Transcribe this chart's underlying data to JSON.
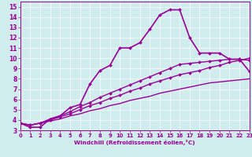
{
  "xlabel": "Windchill (Refroidissement éolien,°C)",
  "background_color": "#d0ecec",
  "line_color": "#990099",
  "xlim": [
    0,
    23
  ],
  "ylim": [
    3,
    15.5
  ],
  "xticks": [
    0,
    1,
    2,
    3,
    4,
    5,
    6,
    7,
    8,
    9,
    10,
    11,
    12,
    13,
    14,
    15,
    16,
    17,
    18,
    19,
    20,
    21,
    22,
    23
  ],
  "yticks": [
    3,
    4,
    5,
    6,
    7,
    8,
    9,
    10,
    11,
    12,
    13,
    14,
    15
  ],
  "series": [
    {
      "x": [
        0,
        1,
        2,
        3,
        4,
        5,
        6,
        7,
        8,
        9,
        10,
        11,
        12,
        13,
        14,
        15,
        16,
        17,
        18,
        19,
        20,
        21,
        22,
        23
      ],
      "y": [
        3.7,
        3.3,
        3.3,
        4.1,
        4.4,
        5.2,
        5.5,
        7.5,
        8.8,
        9.3,
        11.0,
        11.0,
        11.5,
        12.8,
        14.2,
        14.7,
        14.7,
        12.0,
        10.5,
        10.5,
        10.5,
        9.9,
        9.9,
        8.7
      ],
      "marker": true,
      "linewidth": 1.2,
      "dashed": false
    },
    {
      "x": [
        0,
        1,
        2,
        3,
        4,
        5,
        6,
        7,
        8,
        9,
        10,
        11,
        12,
        13,
        14,
        15,
        16,
        17,
        18,
        19,
        20,
        21,
        22,
        23
      ],
      "y": [
        3.7,
        3.5,
        3.7,
        4.0,
        4.3,
        4.6,
        5.0,
        5.4,
        5.7,
        6.1,
        6.4,
        6.8,
        7.1,
        7.5,
        7.8,
        8.1,
        8.4,
        8.6,
        8.8,
        9.1,
        9.3,
        9.6,
        9.8,
        10.0
      ],
      "marker": true,
      "linewidth": 1.0,
      "dashed": false
    },
    {
      "x": [
        0,
        1,
        2,
        3,
        4,
        5,
        6,
        7,
        8,
        9,
        10,
        11,
        12,
        13,
        14,
        15,
        16,
        17,
        18,
        19,
        20,
        21,
        22,
        23
      ],
      "y": [
        3.7,
        3.5,
        3.7,
        3.9,
        4.1,
        4.4,
        4.6,
        4.9,
        5.1,
        5.4,
        5.6,
        5.9,
        6.1,
        6.3,
        6.6,
        6.8,
        7.0,
        7.2,
        7.4,
        7.6,
        7.7,
        7.8,
        7.9,
        8.0
      ],
      "marker": false,
      "linewidth": 1.0,
      "dashed": false
    },
    {
      "x": [
        0,
        1,
        2,
        3,
        4,
        5,
        6,
        7,
        8,
        9,
        10,
        11,
        12,
        13,
        14,
        15,
        16,
        17,
        18,
        19,
        20,
        21,
        22,
        23
      ],
      "y": [
        3.7,
        3.5,
        3.7,
        4.1,
        4.4,
        4.8,
        5.3,
        5.7,
        6.2,
        6.6,
        7.0,
        7.4,
        7.8,
        8.2,
        8.6,
        9.0,
        9.4,
        9.5,
        9.6,
        9.7,
        9.8,
        9.9,
        9.9,
        9.8
      ],
      "marker": true,
      "linewidth": 1.0,
      "dashed": false
    }
  ]
}
